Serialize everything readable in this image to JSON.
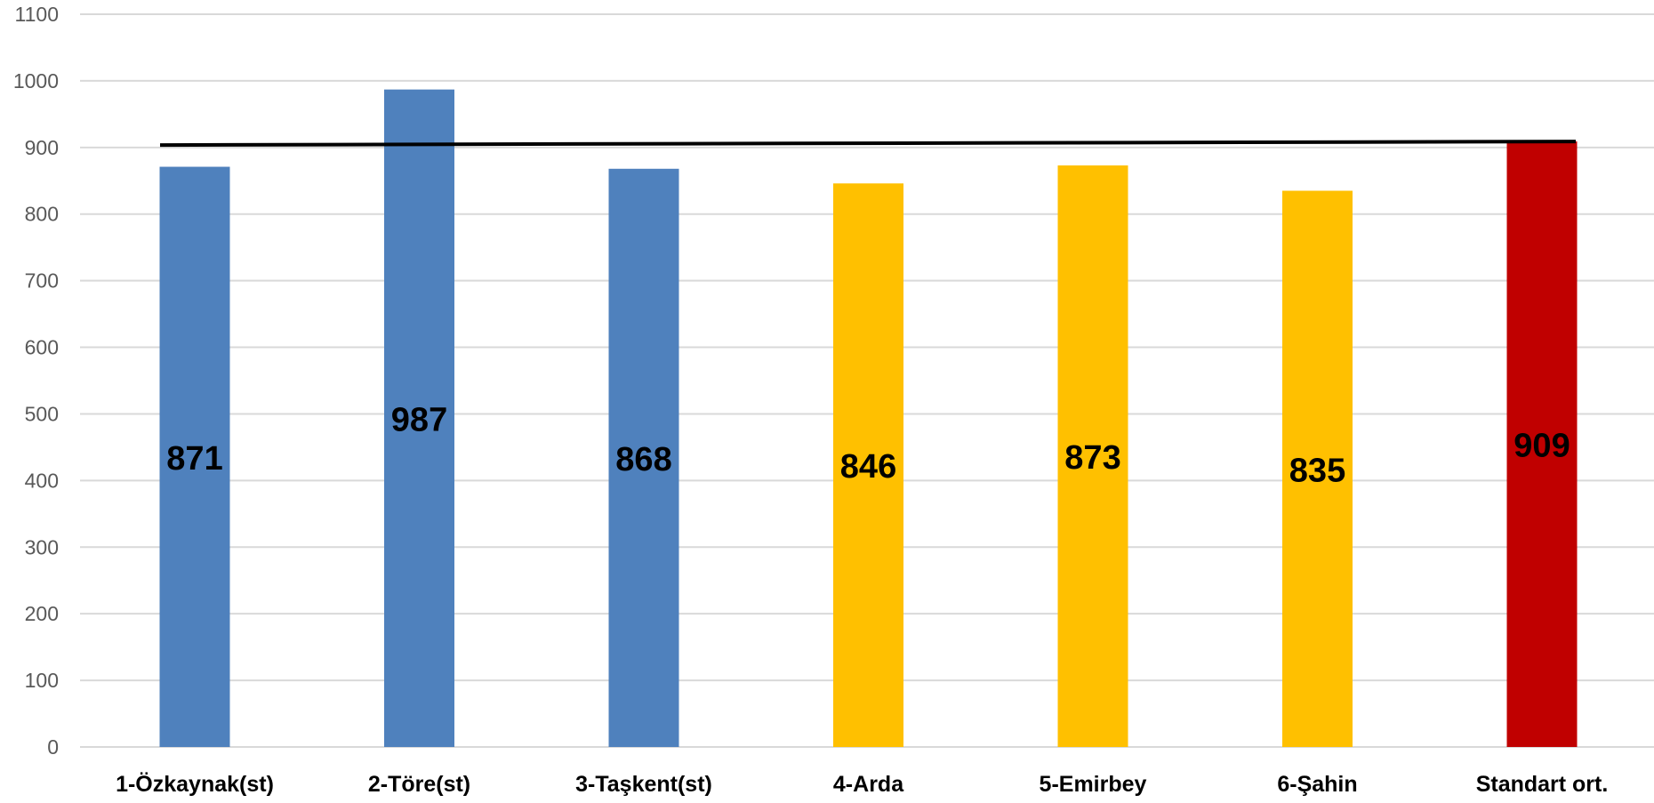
{
  "chart_data": {
    "type": "bar",
    "categories": [
      "1-Özkaynak(st)",
      "2-Töre(st)",
      "3-Taşkent(st)",
      "4-Arda",
      "5-Emirbey",
      "6-Şahin",
      "Standart ort."
    ],
    "values": [
      871,
      987,
      868,
      846,
      873,
      835,
      909
    ],
    "data_labels": [
      "871",
      "987",
      "868",
      "846",
      "873",
      "835",
      "909"
    ],
    "bar_colors": [
      "#4f81bd",
      "#4f81bd",
      "#4f81bd",
      "#ffc000",
      "#ffc000",
      "#ffc000",
      "#c00000"
    ],
    "reference_line": {
      "value": 905,
      "color": "#000000"
    },
    "ylim": [
      0,
      1100
    ],
    "yticks": [
      0,
      100,
      200,
      300,
      400,
      500,
      600,
      700,
      800,
      900,
      1000,
      1100
    ],
    "ytick_labels": [
      "0",
      "100",
      "200",
      "300",
      "400",
      "500",
      "600",
      "700",
      "800",
      "900",
      "1000",
      "1100"
    ],
    "grid": true,
    "title": "",
    "xlabel": "",
    "ylabel": ""
  }
}
